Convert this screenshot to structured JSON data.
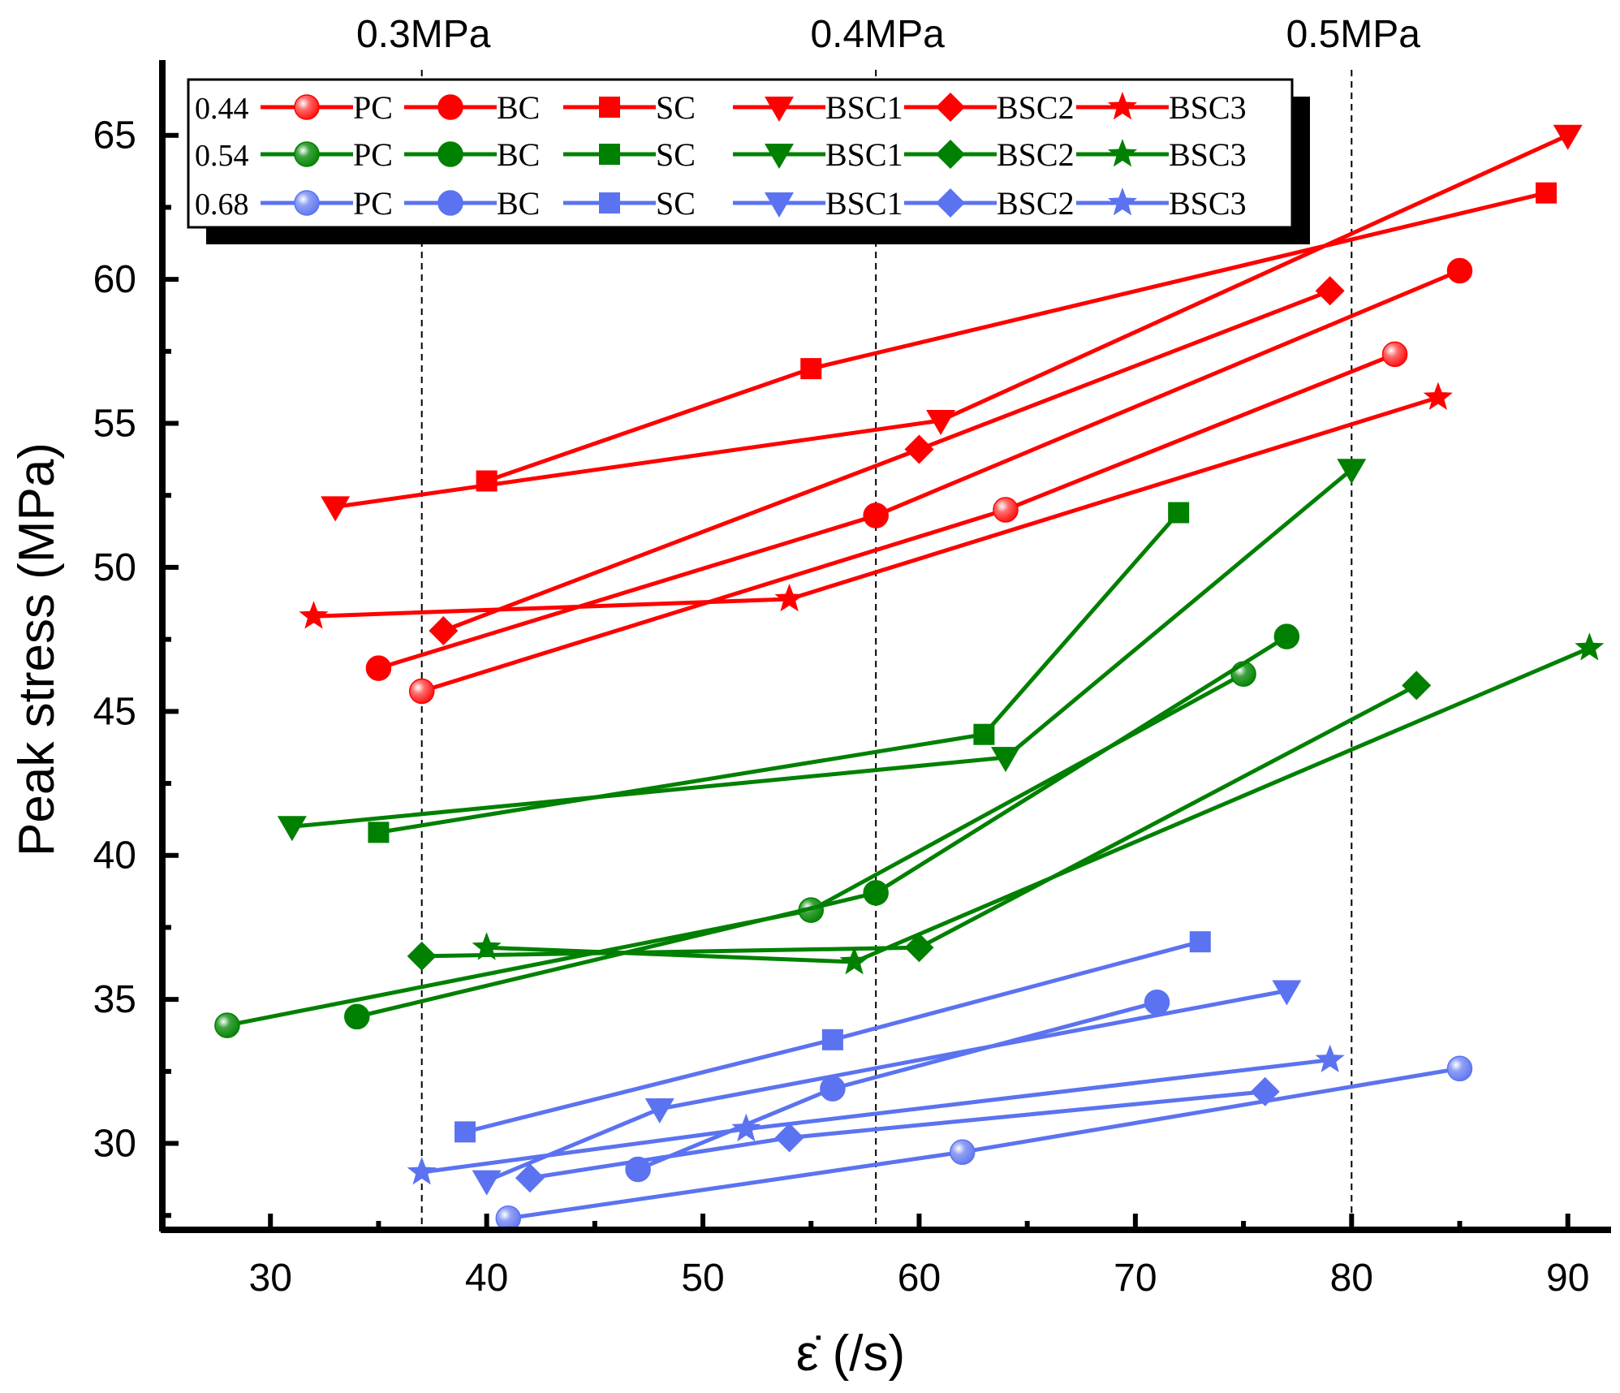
{
  "chart_data": {
    "type": "line",
    "title": "",
    "xlabel": "ε̇ (/s)",
    "ylabel": "Peak stress (MPa)",
    "xlim": [
      25,
      92
    ],
    "ylim": [
      27.0,
      67.5
    ],
    "xticks": [
      30,
      40,
      50,
      60,
      70,
      80,
      90
    ],
    "yticks": [
      30,
      35,
      40,
      45,
      50,
      55,
      60,
      65
    ],
    "grid": false,
    "legend_position": "top-left",
    "reference_lines": [
      {
        "x": 37,
        "label": "0.3MPa"
      },
      {
        "x": 58,
        "label": "0.4MPa"
      },
      {
        "x": 80,
        "label": "0.5MPa"
      }
    ],
    "groups": [
      {
        "label": "0.44",
        "color": "#ff0000"
      },
      {
        "label": "0.54",
        "color": "#008000"
      },
      {
        "label": "0.68",
        "color": "#5b73f0"
      }
    ],
    "series": [
      {
        "group": 0,
        "name": "PC",
        "marker": "circle-shaded",
        "x": [
          37,
          64,
          82
        ],
        "y": [
          45.7,
          52.0,
          57.4
        ]
      },
      {
        "group": 0,
        "name": "BC",
        "marker": "circle",
        "x": [
          35,
          58,
          85
        ],
        "y": [
          46.5,
          51.8,
          60.3
        ]
      },
      {
        "group": 0,
        "name": "SC",
        "marker": "square",
        "x": [
          40,
          55,
          89
        ],
        "y": [
          53.0,
          56.9,
          63.0
        ]
      },
      {
        "group": 0,
        "name": "BSC1",
        "marker": "triangle-down",
        "x": [
          33,
          61,
          90
        ],
        "y": [
          52.1,
          55.1,
          65.0
        ]
      },
      {
        "group": 0,
        "name": "BSC2",
        "marker": "diamond",
        "x": [
          38,
          60,
          79
        ],
        "y": [
          47.8,
          54.1,
          59.6
        ]
      },
      {
        "group": 0,
        "name": "BSC3",
        "marker": "star",
        "x": [
          32,
          54,
          84
        ],
        "y": [
          48.3,
          48.9,
          55.9
        ]
      },
      {
        "group": 1,
        "name": "PC",
        "marker": "circle-shaded",
        "x": [
          28,
          55,
          75
        ],
        "y": [
          34.1,
          38.1,
          46.3
        ]
      },
      {
        "group": 1,
        "name": "BC",
        "marker": "circle",
        "x": [
          34,
          58,
          77
        ],
        "y": [
          34.4,
          38.7,
          47.6
        ]
      },
      {
        "group": 1,
        "name": "SC",
        "marker": "square",
        "x": [
          35,
          63,
          72
        ],
        "y": [
          40.8,
          44.2,
          51.9
        ]
      },
      {
        "group": 1,
        "name": "BSC1",
        "marker": "triangle-down",
        "x": [
          31,
          64,
          80
        ],
        "y": [
          41.0,
          43.4,
          53.4
        ]
      },
      {
        "group": 1,
        "name": "BSC2",
        "marker": "diamond",
        "x": [
          37,
          60,
          83
        ],
        "y": [
          36.5,
          36.8,
          45.9
        ]
      },
      {
        "group": 1,
        "name": "BSC3",
        "marker": "star",
        "x": [
          40,
          57,
          91
        ],
        "y": [
          36.8,
          36.3,
          47.2
        ]
      },
      {
        "group": 2,
        "name": "PC",
        "marker": "circle-shaded",
        "x": [
          41,
          62,
          85
        ],
        "y": [
          27.4,
          29.7,
          32.6
        ]
      },
      {
        "group": 2,
        "name": "BC",
        "marker": "circle",
        "x": [
          47,
          56,
          71
        ],
        "y": [
          29.1,
          31.9,
          34.9
        ]
      },
      {
        "group": 2,
        "name": "SC",
        "marker": "square",
        "x": [
          39,
          56,
          73
        ],
        "y": [
          30.4,
          33.6,
          37.0
        ]
      },
      {
        "group": 2,
        "name": "BSC1",
        "marker": "triangle-down",
        "x": [
          40,
          48,
          77
        ],
        "y": [
          28.7,
          31.2,
          35.3
        ]
      },
      {
        "group": 2,
        "name": "BSC2",
        "marker": "diamond",
        "x": [
          42,
          54,
          76
        ],
        "y": [
          28.8,
          30.2,
          31.8
        ]
      },
      {
        "group": 2,
        "name": "BSC3",
        "marker": "star",
        "x": [
          37,
          52,
          79
        ],
        "y": [
          29.0,
          30.5,
          32.9
        ]
      }
    ]
  }
}
